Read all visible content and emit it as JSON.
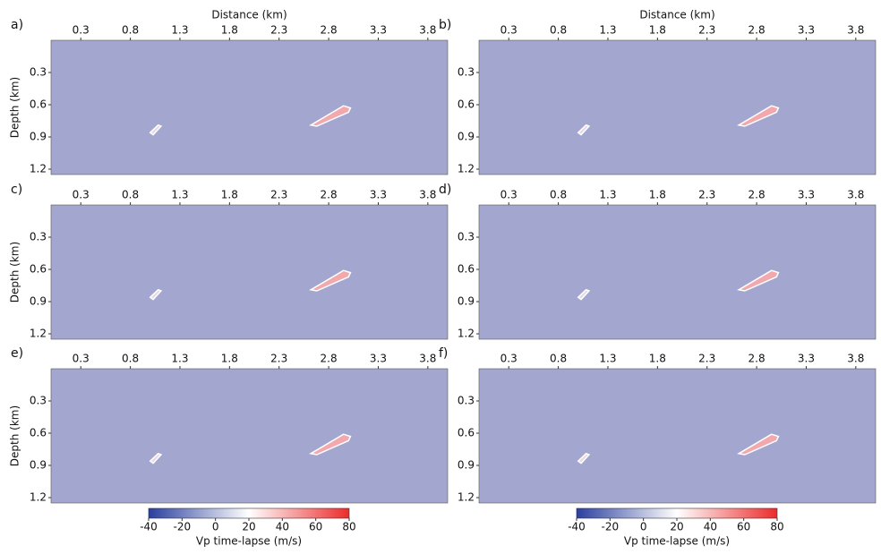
{
  "chart_data": [
    {
      "type": "heatmap",
      "label": "a)",
      "xlabel": "Distance (km)",
      "ylabel": "Depth (km)",
      "xlim": [
        0,
        4
      ],
      "ylim": [
        0,
        1.25
      ],
      "xticks": [
        0.3,
        0.8,
        1.3,
        1.8,
        2.3,
        2.8,
        3.3,
        3.8
      ],
      "yticks": [
        0.3,
        0.6,
        0.9,
        1.2
      ],
      "color": "#a3a6cf"
    },
    {
      "type": "heatmap",
      "label": "b)",
      "xlabel": "Distance (km)",
      "xlim": [
        0,
        4
      ],
      "ylim": [
        0,
        1.25
      ],
      "xticks": [
        0.3,
        0.8,
        1.3,
        1.8,
        2.3,
        2.8,
        3.3,
        3.8
      ],
      "yticks": [
        0.3,
        0.6,
        0.9,
        1.2
      ],
      "color": "#a3a6cf"
    },
    {
      "type": "heatmap",
      "label": "c)",
      "ylabel": "Depth (km)",
      "xlim": [
        0,
        4
      ],
      "ylim": [
        0,
        1.25
      ],
      "xticks": [
        0.3,
        0.8,
        1.3,
        1.8,
        2.3,
        2.8,
        3.3,
        3.8
      ],
      "yticks": [
        0.3,
        0.6,
        0.9,
        1.2
      ],
      "color": "#a3a6cf"
    },
    {
      "type": "heatmap",
      "label": "d)",
      "xlim": [
        0,
        4
      ],
      "ylim": [
        0,
        1.25
      ],
      "xticks": [
        0.3,
        0.8,
        1.3,
        1.8,
        2.3,
        2.8,
        3.3,
        3.8
      ],
      "yticks": [
        0.3,
        0.6,
        0.9,
        1.2
      ],
      "color": "#a3a6cf"
    },
    {
      "type": "heatmap",
      "label": "e)",
      "ylabel": "Depth (km)",
      "xlim": [
        0,
        4
      ],
      "ylim": [
        0,
        1.25
      ],
      "xticks": [
        0.3,
        0.8,
        1.3,
        1.8,
        2.3,
        2.8,
        3.3,
        3.8
      ],
      "yticks": [
        0.3,
        0.6,
        0.9,
        1.2
      ],
      "color": "#a3a6cf",
      "colorbar": {
        "label": "Vp time-lapse (m/s)",
        "lim": [
          -40,
          80
        ],
        "ticks": [
          -40,
          -20,
          0,
          20,
          40,
          60,
          80
        ],
        "colors": [
          "#2a3f9e",
          "#ffffff",
          "#ec2b2b"
        ]
      }
    },
    {
      "type": "heatmap",
      "label": "f)",
      "xlim": [
        0,
        4
      ],
      "ylim": [
        0,
        1.25
      ],
      "xticks": [
        0.3,
        0.8,
        1.3,
        1.8,
        2.3,
        2.8,
        3.3,
        3.8
      ],
      "yticks": [
        0.3,
        0.6,
        0.9,
        1.2
      ],
      "color": "#a3a6cf",
      "colorbar": {
        "label": "Vp time-lapse (m/s)",
        "lim": [
          -40,
          80
        ],
        "ticks": [
          -40,
          -20,
          0,
          20,
          40,
          60,
          80
        ],
        "colors": [
          "#2a3f9e",
          "#ffffff",
          "#ec2b2b"
        ]
      }
    }
  ]
}
